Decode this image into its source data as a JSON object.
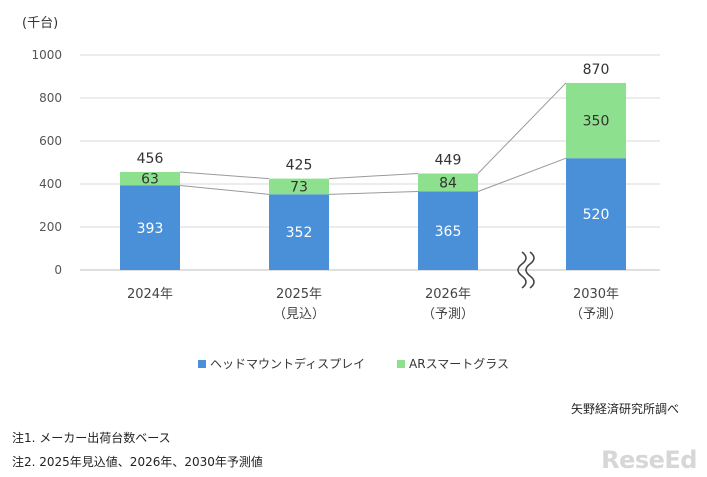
{
  "chart_data": {
    "type": "bar",
    "stacked": true,
    "unit_label": "(千台)",
    "categories": [
      {
        "line1": "2024年",
        "line2": ""
      },
      {
        "line1": "2025年",
        "line2": "（見込）"
      },
      {
        "line1": "2026年",
        "line2": "（予測）"
      },
      {
        "line1": "2030年",
        "line2": "（予測）"
      }
    ],
    "series": [
      {
        "name": "ヘッドマウントディスプレイ",
        "color": "#4a90d9",
        "label_color": "#ffffff",
        "values": [
          393,
          352,
          365,
          520
        ]
      },
      {
        "name": "ARスマートグラス",
        "color": "#8de08d",
        "label_color": "#333333",
        "values": [
          63,
          73,
          84,
          350
        ]
      }
    ],
    "totals": [
      456,
      425,
      449,
      870
    ],
    "ylim": [
      0,
      1000
    ],
    "yticks": [
      0,
      200,
      400,
      600,
      800,
      1000
    ],
    "axis_break_between": [
      2,
      3
    ],
    "grid": true,
    "legend_position": "bottom"
  },
  "source": "矢野経済研究所調べ",
  "notes": [
    "注1. メーカー出荷台数ベース",
    "注2. 2025年見込値、2026年、2030年予測値"
  ],
  "logo_text": "ReseEd"
}
